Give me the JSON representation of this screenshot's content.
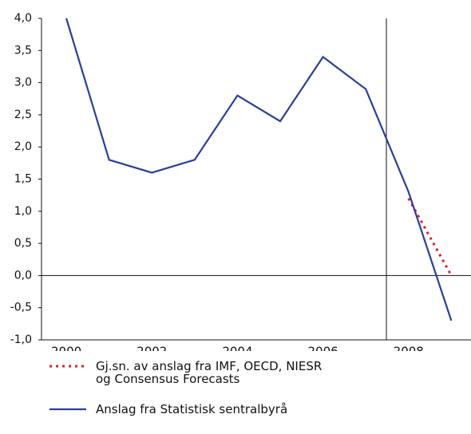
{
  "chart_data": {
    "type": "line",
    "x": [
      2000,
      2001,
      2002,
      2003,
      2004,
      2005,
      2006,
      2007,
      2008,
      2009
    ],
    "series": [
      {
        "name": "Gj.sn. av anslag fra IMF, OECD, NIESR og Consensus Forecasts",
        "color": "#e0202a",
        "dash": true,
        "values": [
          null,
          null,
          null,
          null,
          null,
          null,
          null,
          null,
          1.2,
          0.0
        ]
      },
      {
        "name": "Anslag fra Statistisk sentralbyrå",
        "color": "#2b3f96",
        "dash": false,
        "values": [
          4.0,
          1.8,
          1.6,
          1.8,
          2.8,
          2.4,
          3.4,
          2.9,
          1.3,
          -0.7
        ]
      }
    ],
    "xlim": [
      1999.42,
      2009.46
    ],
    "xticks": [
      2000,
      2002,
      2004,
      2006,
      2008
    ],
    "ylim": [
      -1,
      4
    ],
    "yticks": [
      {
        "value": -1,
        "label": "-1,0"
      },
      {
        "value": -0.5,
        "label": "-0,5"
      },
      {
        "value": 0,
        "label": "0,0"
      },
      {
        "value": 0.5,
        "label": "0,5"
      },
      {
        "value": 1,
        "label": "1,0"
      },
      {
        "value": 1.5,
        "label": "1,5"
      },
      {
        "value": 2,
        "label": "2,0"
      },
      {
        "value": 2.5,
        "label": "2,5"
      },
      {
        "value": 3,
        "label": "3,0"
      },
      {
        "value": 3.5,
        "label": "3,5"
      },
      {
        "value": 4,
        "label": "4,0"
      }
    ]
  }
}
